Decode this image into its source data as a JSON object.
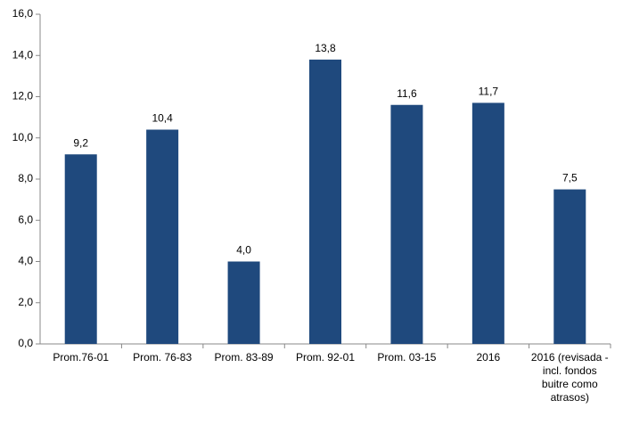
{
  "chart_data": {
    "type": "bar",
    "categories": [
      "Prom.76-01",
      "Prom. 76-83",
      "Prom. 83-89",
      "Prom. 92-01",
      "Prom. 03-15",
      "2016",
      "2016 (revisada - incl. fondos buitre como atrasos)"
    ],
    "values": [
      9.2,
      10.4,
      4.0,
      13.8,
      11.6,
      11.7,
      7.5
    ],
    "value_labels": [
      "9,2",
      "10,4",
      "4,0",
      "13,8",
      "11,6",
      "11,7",
      "7,5"
    ],
    "color": "#1f497d",
    "ylim": [
      0,
      16
    ],
    "yticks": [
      {
        "value": 0,
        "label": "0,0"
      },
      {
        "value": 2,
        "label": "2,0"
      },
      {
        "value": 4,
        "label": "4,0"
      },
      {
        "value": 6,
        "label": "6,0"
      },
      {
        "value": 8,
        "label": "8,0"
      },
      {
        "value": 10,
        "label": "10,0"
      },
      {
        "value": 12,
        "label": "12,0"
      },
      {
        "value": 14,
        "label": "14,0"
      },
      {
        "value": 16,
        "label": "16,0"
      }
    ],
    "grid": false
  }
}
